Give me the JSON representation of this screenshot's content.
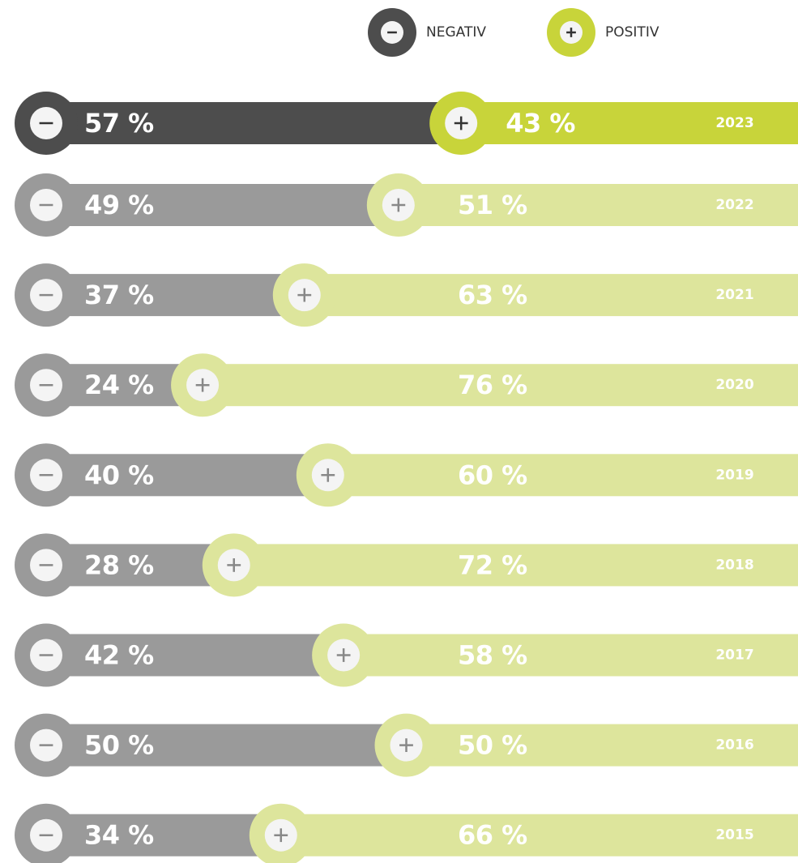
{
  "chart_data": {
    "type": "bar",
    "orientation": "horizontal",
    "stacked": true,
    "categories": [
      "2023",
      "2022",
      "2021",
      "2020",
      "2019",
      "2018",
      "2017",
      "2016",
      "2015"
    ],
    "xlim": [
      0,
      100
    ],
    "series": [
      {
        "name": "NEGATIV",
        "color": "#9a9a9a",
        "colors": [
          "#4d4d4d",
          "#9a9a9a",
          "#9a9a9a",
          "#9a9a9a",
          "#9a9a9a",
          "#9a9a9a",
          "#9a9a9a",
          "#9a9a9a",
          "#9a9a9a"
        ],
        "values": [
          57,
          49,
          37,
          24,
          40,
          28,
          42,
          50,
          34
        ],
        "value_labels": [
          "57 %",
          "49 %",
          "37 %",
          "24 %",
          "40 %",
          "28 %",
          "42 %",
          "50 %",
          "34 %"
        ]
      },
      {
        "name": "POSITIV",
        "color": "#dbe49a",
        "colors": [
          "#c8d43a",
          "#dde59c",
          "#dde59c",
          "#dde59c",
          "#dde59c",
          "#dde59c",
          "#dde59c",
          "#dde59c",
          "#dde59c"
        ],
        "values": [
          43,
          51,
          63,
          76,
          60,
          72,
          58,
          50,
          66
        ],
        "value_labels": [
          "43 %",
          "51 %",
          "63 %",
          "76 %",
          "60 %",
          "72 %",
          "58 %",
          "50 %",
          "66 %"
        ]
      }
    ]
  }
}
